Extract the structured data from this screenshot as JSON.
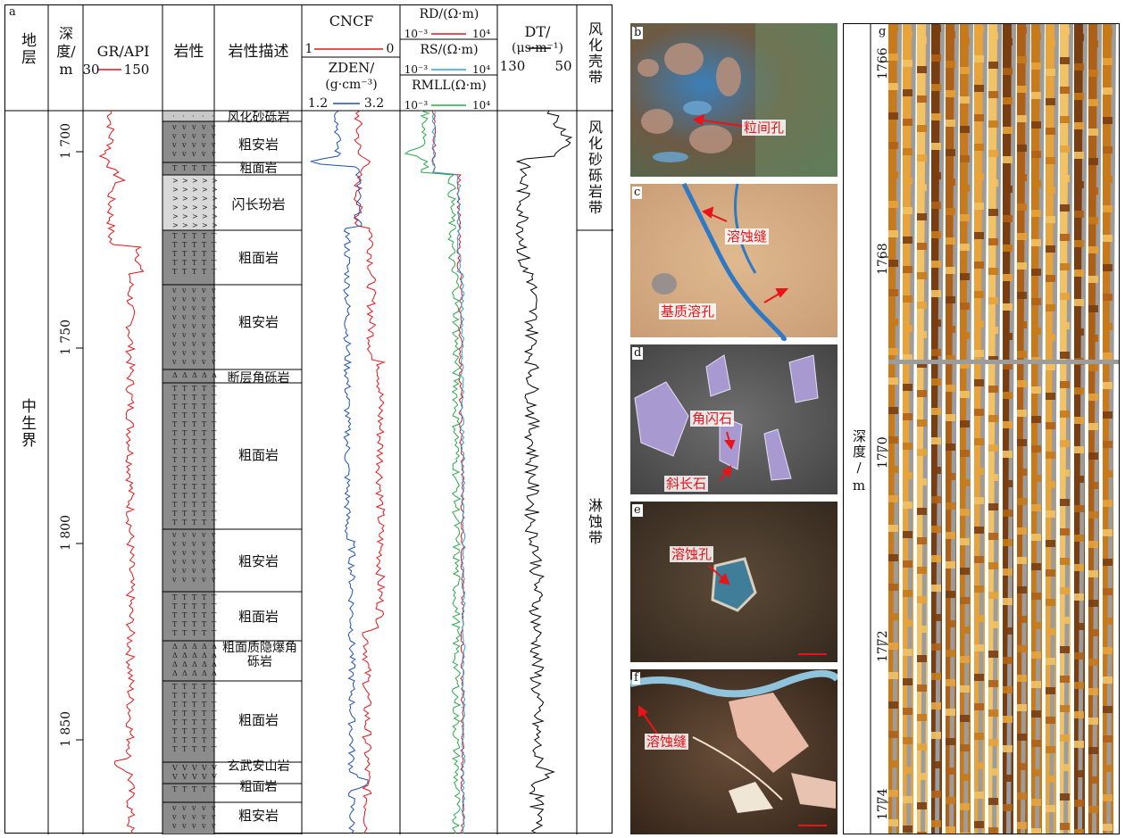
{
  "panel_a": {
    "label": "a",
    "headers": {
      "stratum": "地层",
      "depth": "深度/m",
      "gr": "GR/API",
      "gr_min": "30",
      "gr_max": "150",
      "lithology": "岩性",
      "description": "岩性描述",
      "cncf": "CNCF",
      "cncf_left": "1",
      "cncf_right": "0",
      "zden": "ZDEN/",
      "zden_unit": "(g·cm⁻³)",
      "zden_min": "1.2",
      "zden_max": "3.2",
      "rd": "RD/(Ω·m)",
      "rs": "RS/(Ω·m)",
      "rmll": "RMLL(Ω·m)",
      "res_min": "10⁻³",
      "res_max": "10⁴",
      "dt": "DT/",
      "dt_unit": "(μs·m⁻¹)",
      "dt_min": "130",
      "dt_max": "50",
      "zone": "风化壳带"
    },
    "stratum_name": "中生界",
    "depth_ticks": [
      "1 700",
      "1 750",
      "1 800",
      "1 850"
    ],
    "layers": [
      {
        "name": "风化砂砾岩",
        "type": "gravel"
      },
      {
        "name": "粗安岩",
        "type": "andesite"
      },
      {
        "name": "粗面岩",
        "type": "trachyte"
      },
      {
        "name": "闪长玢岩",
        "type": "diorite"
      },
      {
        "name": "粗面岩",
        "type": "trachyte"
      },
      {
        "name": "粗安岩",
        "type": "andesite"
      },
      {
        "name": "断层角砾岩",
        "type": "breccia"
      },
      {
        "name": "粗面岩",
        "type": "trachyte"
      },
      {
        "name": "粗安岩",
        "type": "andesite"
      },
      {
        "name": "粗面岩",
        "type": "trachyte"
      },
      {
        "name": "粗面质隐爆角砾岩",
        "type": "breccia"
      },
      {
        "name": "粗面岩",
        "type": "trachyte"
      },
      {
        "name": "玄武安山岩",
        "type": "basalt"
      },
      {
        "name": "粗面岩",
        "type": "trachyte"
      },
      {
        "name": "粗安岩",
        "type": "andesite"
      }
    ],
    "zones": [
      "风化砂砾岩带",
      "淋蚀带"
    ]
  },
  "panel_b": {
    "label": "b",
    "annotation": "粒间孔"
  },
  "panel_c": {
    "label": "c",
    "annotation_1": "溶蚀缝",
    "annotation_2": "基质溶孔"
  },
  "panel_d": {
    "label": "d",
    "annotation_1": "角闪石",
    "annotation_2": "斜长石"
  },
  "panel_e": {
    "label": "e",
    "annotation": "溶蚀孔"
  },
  "panel_f": {
    "label": "f",
    "annotation": "溶蚀缝"
  },
  "panel_g": {
    "label": "g",
    "depth_label": "深度/m",
    "ticks": [
      "1766",
      "1768",
      "1770",
      "1772",
      "1774"
    ]
  },
  "colors": {
    "gr": "#e8141a",
    "cncf": "#e8141a",
    "zden": "#1f4fb0",
    "rd": "#e8141a",
    "rs": "#29a3d8",
    "rmll": "#2aa84a",
    "dt": "#000000",
    "lith_dark": "#8c8c8c",
    "lith_light": "#d9d9d9",
    "annotation": "#e8141a"
  }
}
